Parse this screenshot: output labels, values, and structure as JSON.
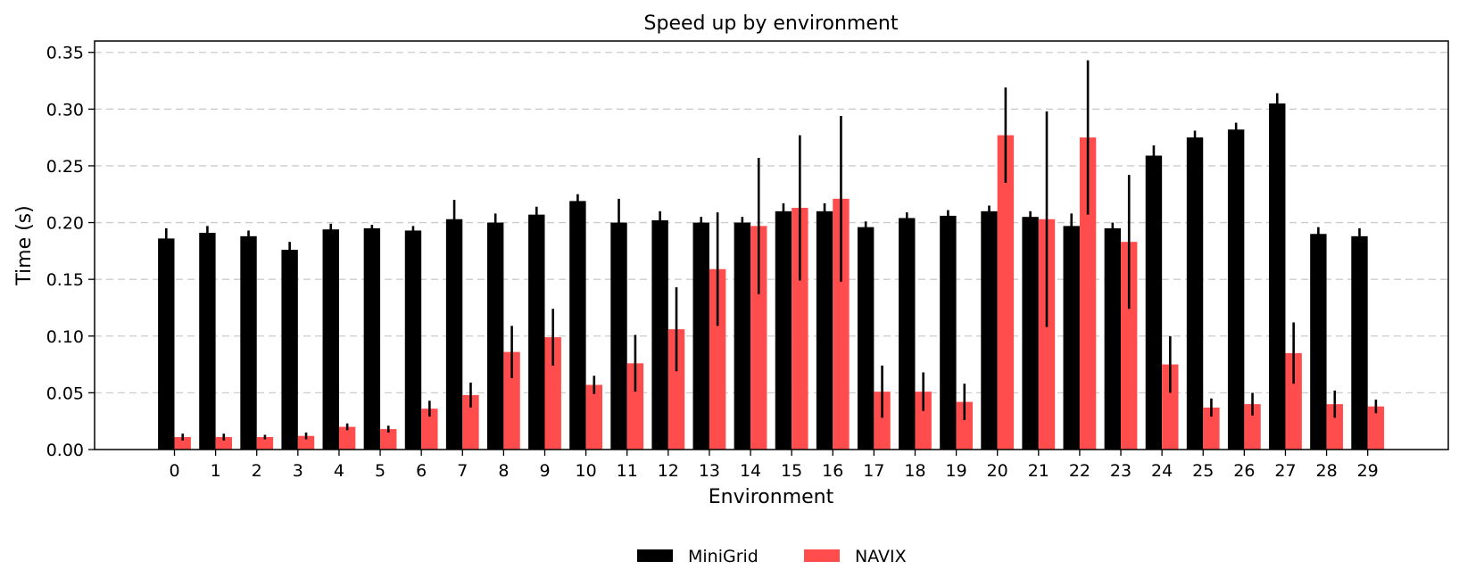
{
  "chart_data": {
    "type": "bar",
    "title": "Speed up by environment",
    "xlabel": "Environment",
    "ylabel": "Time (s)",
    "ylim": [
      0,
      0.36
    ],
    "yticks": [
      "0.00",
      "0.05",
      "0.10",
      "0.15",
      "0.20",
      "0.25",
      "0.30",
      "0.35"
    ],
    "grid": "y-dashed",
    "legend_position": "bottom-center",
    "categories": [
      "0",
      "1",
      "2",
      "3",
      "4",
      "5",
      "6",
      "7",
      "8",
      "9",
      "10",
      "11",
      "12",
      "13",
      "14",
      "15",
      "16",
      "17",
      "18",
      "19",
      "20",
      "21",
      "22",
      "23",
      "24",
      "25",
      "26",
      "27",
      "28",
      "29"
    ],
    "series": [
      {
        "name": "MiniGrid",
        "color": "#000000",
        "values": [
          0.186,
          0.191,
          0.188,
          0.176,
          0.194,
          0.195,
          0.193,
          0.203,
          0.2,
          0.207,
          0.219,
          0.2,
          0.202,
          0.2,
          0.2,
          0.21,
          0.21,
          0.196,
          0.204,
          0.206,
          0.21,
          0.205,
          0.197,
          0.195,
          0.259,
          0.275,
          0.282,
          0.305,
          0.19,
          0.188
        ],
        "errors": [
          0.009,
          0.006,
          0.005,
          0.007,
          0.005,
          0.003,
          0.004,
          0.017,
          0.008,
          0.007,
          0.006,
          0.021,
          0.008,
          0.005,
          0.005,
          0.007,
          0.007,
          0.005,
          0.005,
          0.005,
          0.005,
          0.005,
          0.011,
          0.005,
          0.009,
          0.006,
          0.006,
          0.009,
          0.006,
          0.007
        ]
      },
      {
        "name": "NAVIX",
        "color": "#ff4d4d",
        "values": [
          0.011,
          0.011,
          0.011,
          0.012,
          0.02,
          0.018,
          0.036,
          0.048,
          0.086,
          0.099,
          0.057,
          0.076,
          0.106,
          0.159,
          0.197,
          0.213,
          0.221,
          0.051,
          0.051,
          0.042,
          0.277,
          0.203,
          0.275,
          0.183,
          0.075,
          0.037,
          0.04,
          0.085,
          0.04,
          0.038
        ],
        "errors": [
          0.003,
          0.003,
          0.002,
          0.003,
          0.003,
          0.003,
          0.007,
          0.011,
          0.023,
          0.025,
          0.008,
          0.025,
          0.037,
          0.05,
          0.06,
          0.064,
          0.073,
          0.023,
          0.017,
          0.016,
          0.042,
          0.095,
          0.068,
          0.059,
          0.025,
          0.008,
          0.01,
          0.027,
          0.012,
          0.006
        ]
      }
    ]
  }
}
